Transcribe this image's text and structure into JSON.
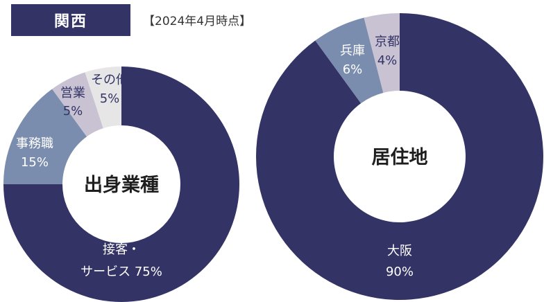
{
  "header": {
    "region": "関西",
    "date_note": "【2024年4月時点】"
  },
  "chart_data": [
    {
      "type": "pie",
      "title": "出身業種",
      "slices": [
        {
          "label": "接客・サービス",
          "value": 75,
          "display": "75%",
          "color": "#333366",
          "text_color": "#ffffff"
        },
        {
          "label": "事務職",
          "value": 15,
          "display": "15%",
          "color": "#7b8dae",
          "text_color": "#ffffff"
        },
        {
          "label": "営業",
          "value": 5,
          "display": "5%",
          "color": "#c8c2d3",
          "text_color": "#333366"
        },
        {
          "label": "その他",
          "value": 5,
          "display": "5%",
          "color": "#e6e6e6",
          "text_color": "#333366"
        }
      ]
    },
    {
      "type": "pie",
      "title": "居住地",
      "slices": [
        {
          "label": "大阪",
          "value": 90,
          "display": "90%",
          "color": "#333366",
          "text_color": "#ffffff"
        },
        {
          "label": "兵庫",
          "value": 6,
          "display": "6%",
          "color": "#7b8dae",
          "text_color": "#ffffff"
        },
        {
          "label": "京都",
          "value": 4,
          "display": "4%",
          "color": "#c8c2d3",
          "text_color": "#333366"
        }
      ]
    }
  ]
}
